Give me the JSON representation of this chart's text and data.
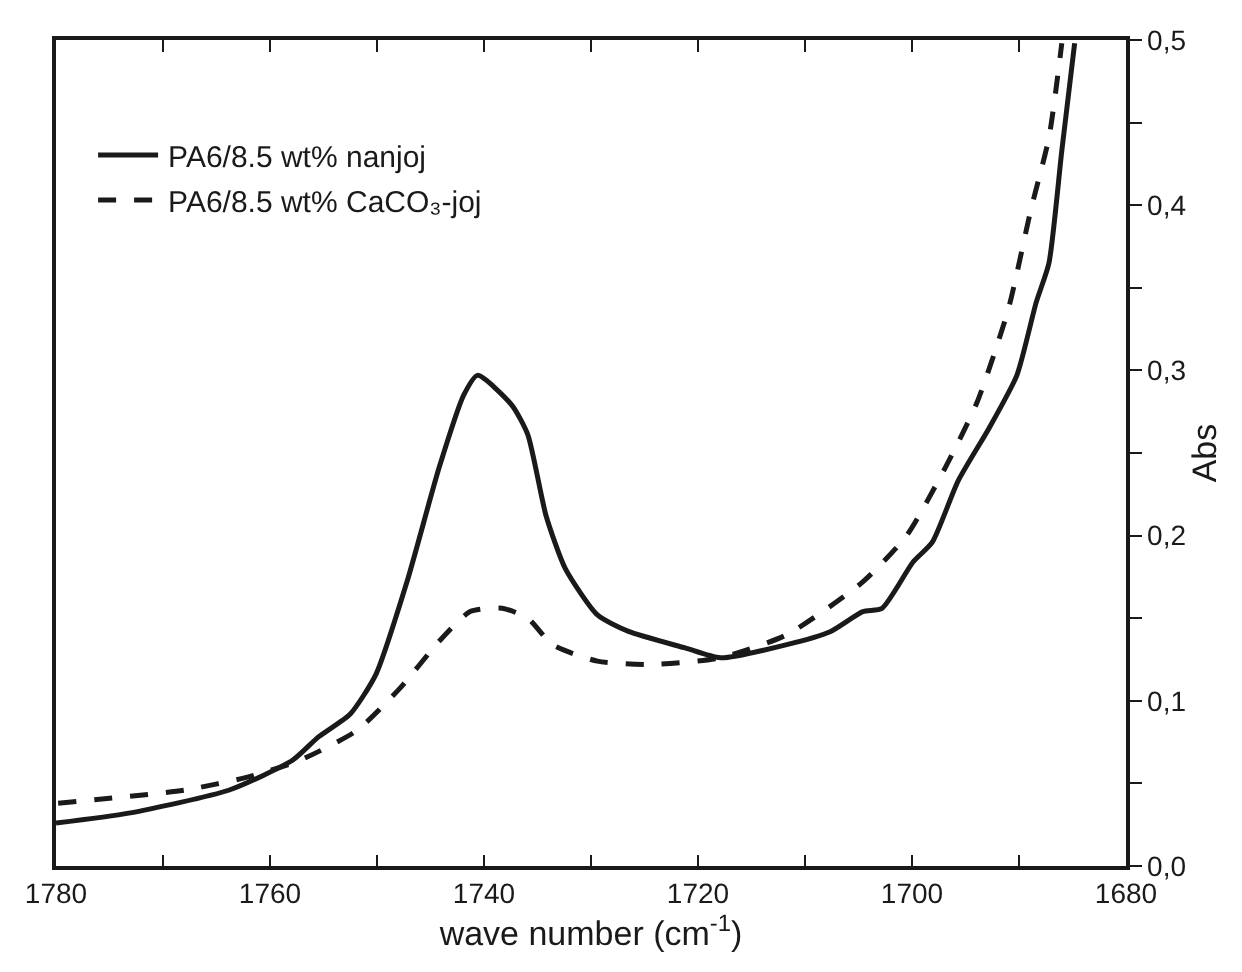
{
  "chart_data": {
    "type": "line",
    "xlabel": "wave number (cm$^{-1}$)",
    "ylabel": "Abs",
    "xlim": [
      1780,
      1680
    ],
    "xticks": [
      1780,
      {
        "value": 1770,
        "label": null
      },
      1760,
      {
        "value": 1750,
        "label": null
      },
      1740,
      {
        "value": 1730,
        "label": null
      },
      1720,
      {
        "value": 1710,
        "label": null
      },
      1700,
      {
        "value": 1690,
        "label": null
      },
      1680
    ],
    "ylim": [
      0,
      0.5
    ],
    "yticks": [
      {
        "value": 0,
        "label": "0,0"
      },
      {
        "value": 0.05,
        "label": null
      },
      {
        "value": 0.1,
        "label": "0,1"
      },
      {
        "value": 0.15,
        "label": null
      },
      {
        "value": 0.2,
        "label": "0,2"
      },
      {
        "value": 0.25,
        "label": null
      },
      {
        "value": 0.3,
        "label": "0,3"
      },
      {
        "value": 0.35,
        "label": null
      },
      {
        "value": 0.4,
        "label": "0,4"
      },
      {
        "value": 0.45,
        "label": null
      },
      {
        "value": 0.5,
        "label": "0,5"
      }
    ],
    "grid": false,
    "legend": "top left",
    "series": [
      {
        "name": "PA6/8.5 wt% nanjoj",
        "color": "#1a1a1a",
        "line_style": "solid",
        "x": [
          1780,
          1773.2,
          1763.8,
          1757.9,
          1755.5,
          1752.5,
          1750.1,
          1747.2,
          1744.2,
          1741.9,
          1740.6,
          1737.4,
          1735.9,
          1734.2,
          1732.4,
          1729.4,
          1726.5,
          1721.2,
          1717.9,
          1711.7,
          1707.6,
          1704.6,
          1702.8,
          1699.9,
          1698.1,
          1695.7,
          1692.8,
          1690.2,
          1688.4,
          1687.2,
          1686.0,
          1684.8
        ],
        "values": [
          0.026,
          0.032,
          0.046,
          0.064,
          0.078,
          0.092,
          0.116,
          0.172,
          0.241,
          0.285,
          0.297,
          0.279,
          0.261,
          0.212,
          0.18,
          0.152,
          0.142,
          0.132,
          0.126,
          0.134,
          0.142,
          0.154,
          0.156,
          0.184,
          0.196,
          0.233,
          0.265,
          0.297,
          0.341,
          0.365,
          0.433,
          0.498
        ]
      },
      {
        "name": "PA6/8.5 wt% CaCO₃-joj",
        "color": "#1a1a1a",
        "line_style": "dashed",
        "x": [
          1779.8,
          1767.9,
          1762.0,
          1757.2,
          1751.9,
          1747.8,
          1744.2,
          1741.3,
          1738.3,
          1735.9,
          1733.6,
          1729.4,
          1724.2,
          1717.9,
          1711.7,
          1704.6,
          1700.5,
          1696.9,
          1693.9,
          1691.0,
          1688.9,
          1687.2,
          1686.0
        ],
        "values": [
          0.038,
          0.046,
          0.054,
          0.064,
          0.082,
          0.108,
          0.136,
          0.154,
          0.156,
          0.15,
          0.134,
          0.124,
          0.122,
          0.126,
          0.14,
          0.172,
          0.2,
          0.241,
          0.281,
          0.337,
          0.397,
          0.441,
          0.498
        ]
      }
    ]
  }
}
